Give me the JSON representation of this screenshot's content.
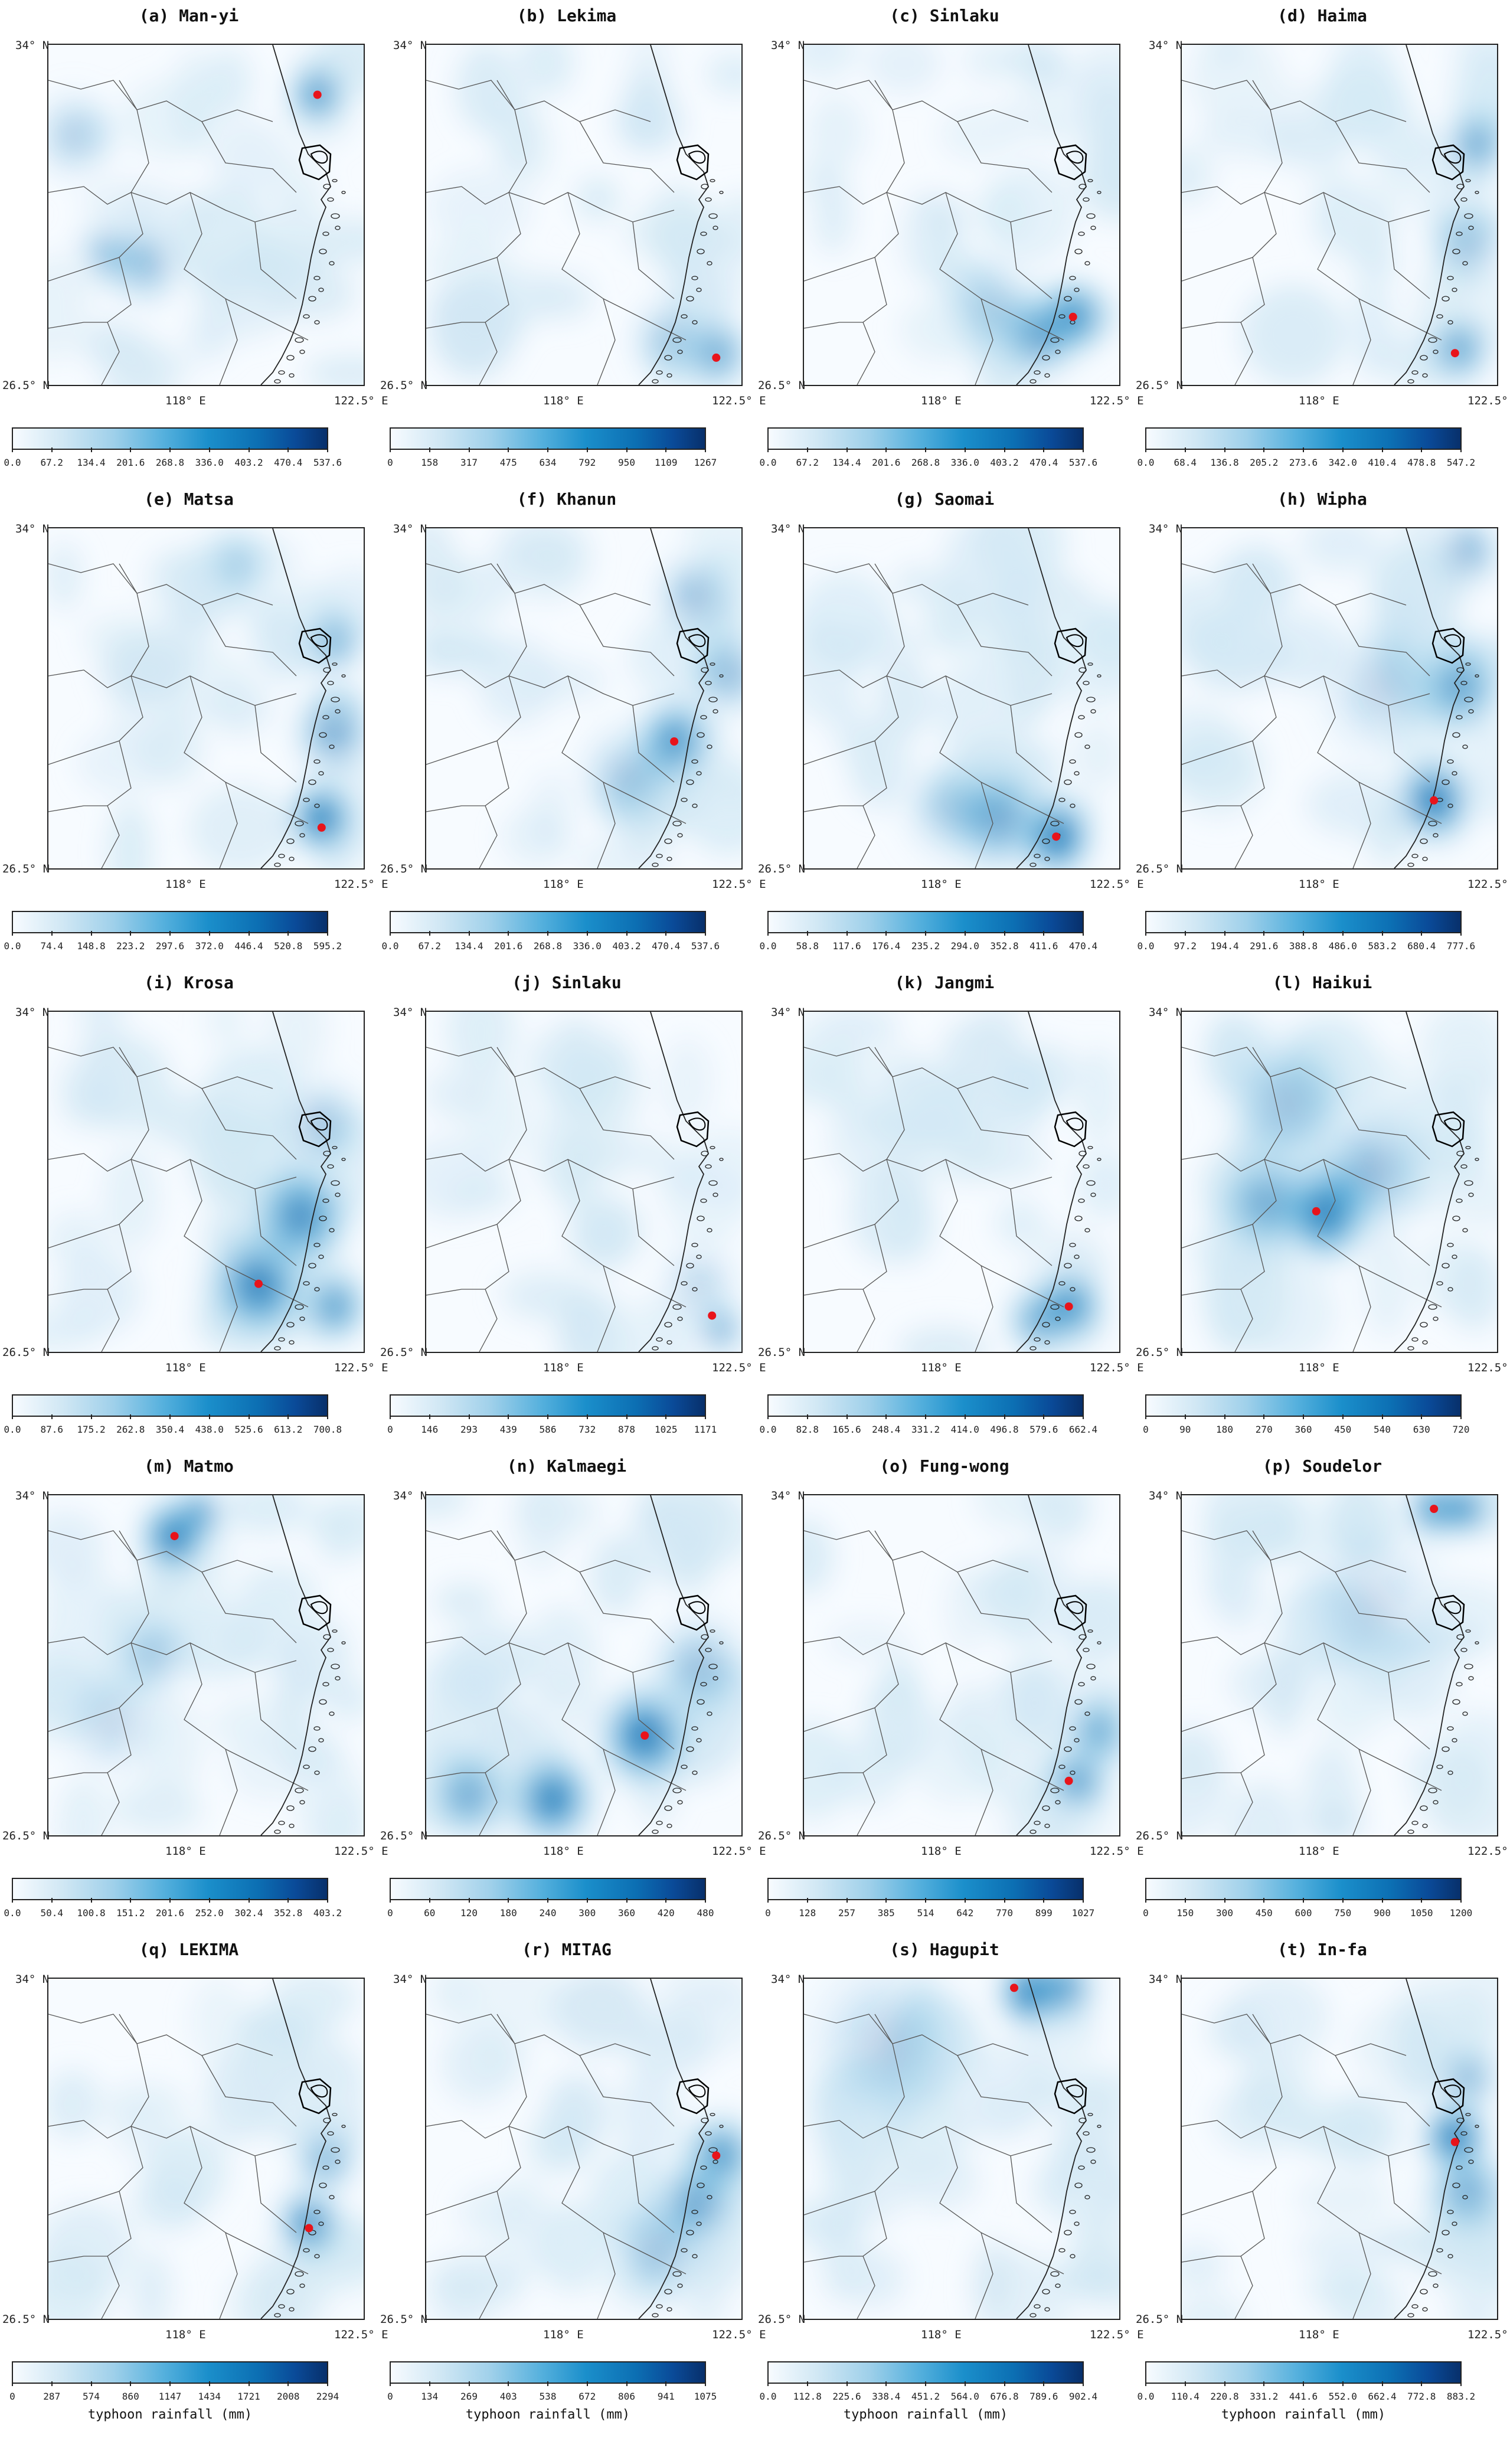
{
  "chart_data": {
    "type": "heatmap",
    "description_axes": {
      "lat_range": [
        26.5,
        34
      ],
      "lon_range": [
        115,
        122.5
      ],
      "y_ticks": [
        "34° N",
        "26.5° N"
      ],
      "x_ticks": [
        "118° E",
        "122.5° E"
      ]
    },
    "colorbar_label": "typhoon rainfall (mm)",
    "colormap": [
      "#f7fbff",
      "#d0e7f4",
      "#9fd0ea",
      "#55b0dd",
      "#1b8fcb",
      "#0c6fb3",
      "#0a4a98",
      "#08306b"
    ],
    "marker_color": "#e8141b",
    "panels": [
      {
        "title": "(a) Man-yi",
        "ticks": [
          "0.0",
          "67.2",
          "134.4",
          "201.6",
          "268.8",
          "336.0",
          "403.2",
          "470.4",
          "537.6"
        ],
        "max": 537.6,
        "center_lon": 121.4,
        "center_lat": 32.9,
        "intensity": 0.55,
        "blobs": [
          [
            121.4,
            32.9,
            0.55,
            0.9
          ],
          [
            117.3,
            29.2,
            0.35,
            1.2
          ],
          [
            116.4,
            29.4,
            0.3,
            1.0
          ],
          [
            115.6,
            32.0,
            0.25,
            1.2
          ]
        ]
      },
      {
        "title": "(b) Lekima",
        "ticks": [
          "0",
          "158",
          "317",
          "475",
          "634",
          "792",
          "950",
          "1109",
          "1267"
        ],
        "max": 1267,
        "center_lon": 121.9,
        "center_lat": 27.1,
        "intensity": 0.45,
        "blobs": [
          [
            121.9,
            27.2,
            0.45,
            1.0
          ],
          [
            120.8,
            27.5,
            0.25,
            1.2
          ]
        ]
      },
      {
        "title": "(c) Sinlaku",
        "ticks": [
          "0.0",
          "67.2",
          "134.4",
          "201.6",
          "268.8",
          "336.0",
          "403.2",
          "470.4",
          "537.6"
        ],
        "max": 537.6,
        "center_lon": 121.4,
        "center_lat": 28.0,
        "intensity": 0.7,
        "blobs": [
          [
            121.4,
            28.0,
            0.7,
            1.0
          ],
          [
            120.6,
            27.6,
            0.5,
            1.2
          ],
          [
            119.5,
            28.2,
            0.2,
            1.5
          ]
        ]
      },
      {
        "title": "(d) Haima",
        "ticks": [
          "0.0",
          "68.4",
          "136.8",
          "205.2",
          "273.6",
          "342.0",
          "410.4",
          "478.8",
          "547.2"
        ],
        "max": 547.2,
        "center_lon": 121.5,
        "center_lat": 27.2,
        "intensity": 0.55,
        "blobs": [
          [
            121.6,
            27.3,
            0.45,
            1.0
          ],
          [
            122.0,
            31.8,
            0.45,
            1.0
          ],
          [
            121.8,
            29.6,
            0.3,
            1.2
          ]
        ]
      },
      {
        "title": "(e) Matsa",
        "ticks": [
          "0.0",
          "74.4",
          "148.8",
          "223.2",
          "297.6",
          "372.0",
          "446.4",
          "520.8",
          "595.2"
        ],
        "max": 595.2,
        "center_lon": 121.5,
        "center_lat": 27.4,
        "intensity": 0.7,
        "blobs": [
          [
            121.5,
            27.6,
            0.7,
            1.0
          ],
          [
            121.8,
            29.5,
            0.45,
            1.2
          ],
          [
            121.8,
            31.5,
            0.35,
            1.0
          ],
          [
            119.5,
            33.2,
            0.2,
            1.0
          ]
        ]
      },
      {
        "title": "(f) Khanun",
        "ticks": [
          "0.0",
          "67.2",
          "134.4",
          "201.6",
          "268.8",
          "336.0",
          "403.2",
          "470.4",
          "537.6"
        ],
        "max": 537.6,
        "center_lon": 120.9,
        "center_lat": 29.3,
        "intensity": 0.55,
        "blobs": [
          [
            120.9,
            29.3,
            0.55,
            1.2
          ],
          [
            121.4,
            32.5,
            0.35,
            1.2
          ],
          [
            122.2,
            30.8,
            0.35,
            1.2
          ],
          [
            119.8,
            28.5,
            0.25,
            1.5
          ]
        ]
      },
      {
        "title": "(g) Saomai",
        "ticks": [
          "0.0",
          "58.8",
          "117.6",
          "176.4",
          "235.2",
          "294.0",
          "352.8",
          "411.6",
          "470.4"
        ],
        "max": 470.4,
        "center_lon": 121.0,
        "center_lat": 27.2,
        "intensity": 0.85,
        "blobs": [
          [
            121.0,
            27.2,
            0.85,
            1.1
          ],
          [
            119.6,
            27.6,
            0.45,
            1.5
          ],
          [
            118.5,
            27.8,
            0.2,
            1.5
          ]
        ]
      },
      {
        "title": "(h) Wipha",
        "ticks": [
          "0.0",
          "97.2",
          "194.4",
          "291.6",
          "388.8",
          "486.0",
          "583.2",
          "680.4",
          "777.6"
        ],
        "max": 777.6,
        "center_lon": 121.0,
        "center_lat": 28.0,
        "intensity": 0.7,
        "blobs": [
          [
            121.0,
            28.0,
            0.7,
            1.2
          ],
          [
            121.6,
            30.5,
            0.45,
            1.3
          ],
          [
            121.8,
            33.5,
            0.4,
            1.0
          ],
          [
            119.8,
            30.5,
            0.2,
            2.0
          ]
        ]
      },
      {
        "title": "(i) Krosa",
        "ticks": [
          "0.0",
          "87.6",
          "175.2",
          "262.8",
          "350.4",
          "438.0",
          "525.6",
          "613.2",
          "700.8"
        ],
        "max": 700.8,
        "center_lon": 120.0,
        "center_lat": 28.0,
        "intensity": 0.65,
        "blobs": [
          [
            120.0,
            28.0,
            0.65,
            1.5
          ],
          [
            121.0,
            29.5,
            0.55,
            1.5
          ],
          [
            121.8,
            27.5,
            0.5,
            1.0
          ],
          [
            121.5,
            31.5,
            0.3,
            1.3
          ]
        ]
      },
      {
        "title": "(j) Sinlaku",
        "ticks": [
          "0",
          "146",
          "293",
          "439",
          "586",
          "732",
          "878",
          "1025",
          "1171"
        ],
        "max": 1171,
        "center_lon": 121.8,
        "center_lat": 27.3,
        "intensity": 0.4,
        "blobs": [
          [
            122.0,
            27.0,
            0.4,
            0.8
          ],
          [
            121.5,
            28.0,
            0.2,
            1.2
          ]
        ]
      },
      {
        "title": "(k) Jangmi",
        "ticks": [
          "0.0",
          "82.8",
          "165.6",
          "248.4",
          "331.2",
          "414.0",
          "496.8",
          "579.6",
          "662.4"
        ],
        "max": 662.4,
        "center_lon": 121.3,
        "center_lat": 27.5,
        "intensity": 0.65,
        "blobs": [
          [
            121.3,
            27.5,
            0.65,
            1.0
          ],
          [
            120.6,
            27.2,
            0.4,
            1.0
          ]
        ]
      },
      {
        "title": "(l) Haikui",
        "ticks": [
          "0",
          "90",
          "180",
          "270",
          "360",
          "450",
          "540",
          "630",
          "720"
        ],
        "max": 720,
        "center_lon": 118.2,
        "center_lat": 29.6,
        "intensity": 0.85,
        "blobs": [
          [
            118.4,
            29.6,
            0.85,
            1.4
          ],
          [
            117.0,
            29.8,
            0.4,
            1.5
          ],
          [
            119.5,
            30.5,
            0.35,
            1.8
          ],
          [
            117.5,
            32.0,
            0.25,
            2.0
          ]
        ]
      },
      {
        "title": "(m) Matmo",
        "ticks": [
          "0.0",
          "50.4",
          "100.8",
          "151.2",
          "201.6",
          "252.0",
          "302.4",
          "352.8",
          "403.2"
        ],
        "max": 403.2,
        "center_lon": 118.0,
        "center_lat": 33.1,
        "intensity": 0.8,
        "blobs": [
          [
            118.0,
            33.1,
            0.8,
            1.0
          ],
          [
            118.6,
            33.6,
            0.5,
            0.8
          ],
          [
            117.5,
            30.5,
            0.25,
            1.2
          ],
          [
            116.5,
            29.0,
            0.2,
            1.5
          ]
        ]
      },
      {
        "title": "(n) Kalmaegi",
        "ticks": [
          "0",
          "60",
          "120",
          "180",
          "240",
          "300",
          "360",
          "420",
          "480"
        ],
        "max": 480,
        "center_lon": 120.2,
        "center_lat": 28.7,
        "intensity": 0.75,
        "blobs": [
          [
            120.2,
            28.7,
            0.7,
            1.4
          ],
          [
            118.0,
            27.3,
            0.65,
            1.3
          ],
          [
            116.0,
            27.4,
            0.4,
            1.3
          ],
          [
            121.5,
            30.2,
            0.3,
            1.5
          ]
        ]
      },
      {
        "title": "(o) Fung-wong",
        "ticks": [
          "0",
          "128",
          "257",
          "385",
          "514",
          "642",
          "770",
          "899",
          "1027"
        ],
        "max": 1027,
        "center_lon": 121.3,
        "center_lat": 27.7,
        "intensity": 0.5,
        "blobs": [
          [
            121.5,
            27.7,
            0.5,
            1.0
          ],
          [
            122.0,
            28.8,
            0.4,
            1.0
          ]
        ]
      },
      {
        "title": "(p) Soudelor",
        "ticks": [
          "0",
          "150",
          "300",
          "450",
          "600",
          "750",
          "900",
          "1050",
          "1200"
        ],
        "max": 1200,
        "center_lon": 121.0,
        "center_lat": 33.7,
        "intensity": 0.95,
        "blobs": [
          [
            121.7,
            33.7,
            0.95,
            0.7
          ],
          [
            121.0,
            33.7,
            0.6,
            0.8
          ],
          [
            119.5,
            31.5,
            0.15,
            2.5
          ]
        ]
      },
      {
        "title": "(q) LEKIMA",
        "ticks": [
          "0",
          "287",
          "574",
          "860",
          "1147",
          "1434",
          "1721",
          "2008",
          "2294"
        ],
        "max": 2294,
        "center_lon": 121.2,
        "center_lat": 28.5,
        "intensity": 0.6,
        "blobs": [
          [
            121.2,
            28.6,
            0.6,
            1.0
          ],
          [
            121.6,
            30.0,
            0.35,
            1.0
          ]
        ]
      },
      {
        "title": "(r) MITAG",
        "ticks": [
          "0",
          "134",
          "269",
          "403",
          "538",
          "672",
          "806",
          "941",
          "1075"
        ],
        "max": 1075,
        "center_lon": 121.9,
        "center_lat": 30.1,
        "intensity": 0.65,
        "blobs": [
          [
            122.0,
            30.1,
            0.6,
            1.0
          ],
          [
            121.4,
            29.0,
            0.5,
            1.3
          ],
          [
            120.5,
            28.0,
            0.3,
            1.5
          ]
        ]
      },
      {
        "title": "(s) Hagupit",
        "ticks": [
          "0.0",
          "112.8",
          "225.6",
          "338.4",
          "451.2",
          "564.0",
          "676.8",
          "789.6",
          "902.4"
        ],
        "max": 902.4,
        "center_lon": 120.0,
        "center_lat": 33.8,
        "intensity": 0.85,
        "blobs": [
          [
            120.4,
            33.7,
            0.8,
            1.0
          ],
          [
            121.2,
            33.8,
            0.5,
            1.0
          ],
          [
            117.0,
            32.5,
            0.2,
            2.5
          ]
        ]
      },
      {
        "title": "(t) In-fa",
        "ticks": [
          "0.0",
          "110.4",
          "220.8",
          "331.2",
          "441.6",
          "552.0",
          "662.4",
          "772.8",
          "883.2"
        ],
        "max": 883.2,
        "center_lon": 121.5,
        "center_lat": 30.4,
        "intensity": 0.8,
        "blobs": [
          [
            121.5,
            30.5,
            0.75,
            1.0
          ],
          [
            121.8,
            29.3,
            0.4,
            1.2
          ],
          [
            121.8,
            31.8,
            0.35,
            1.0
          ]
        ]
      }
    ]
  }
}
